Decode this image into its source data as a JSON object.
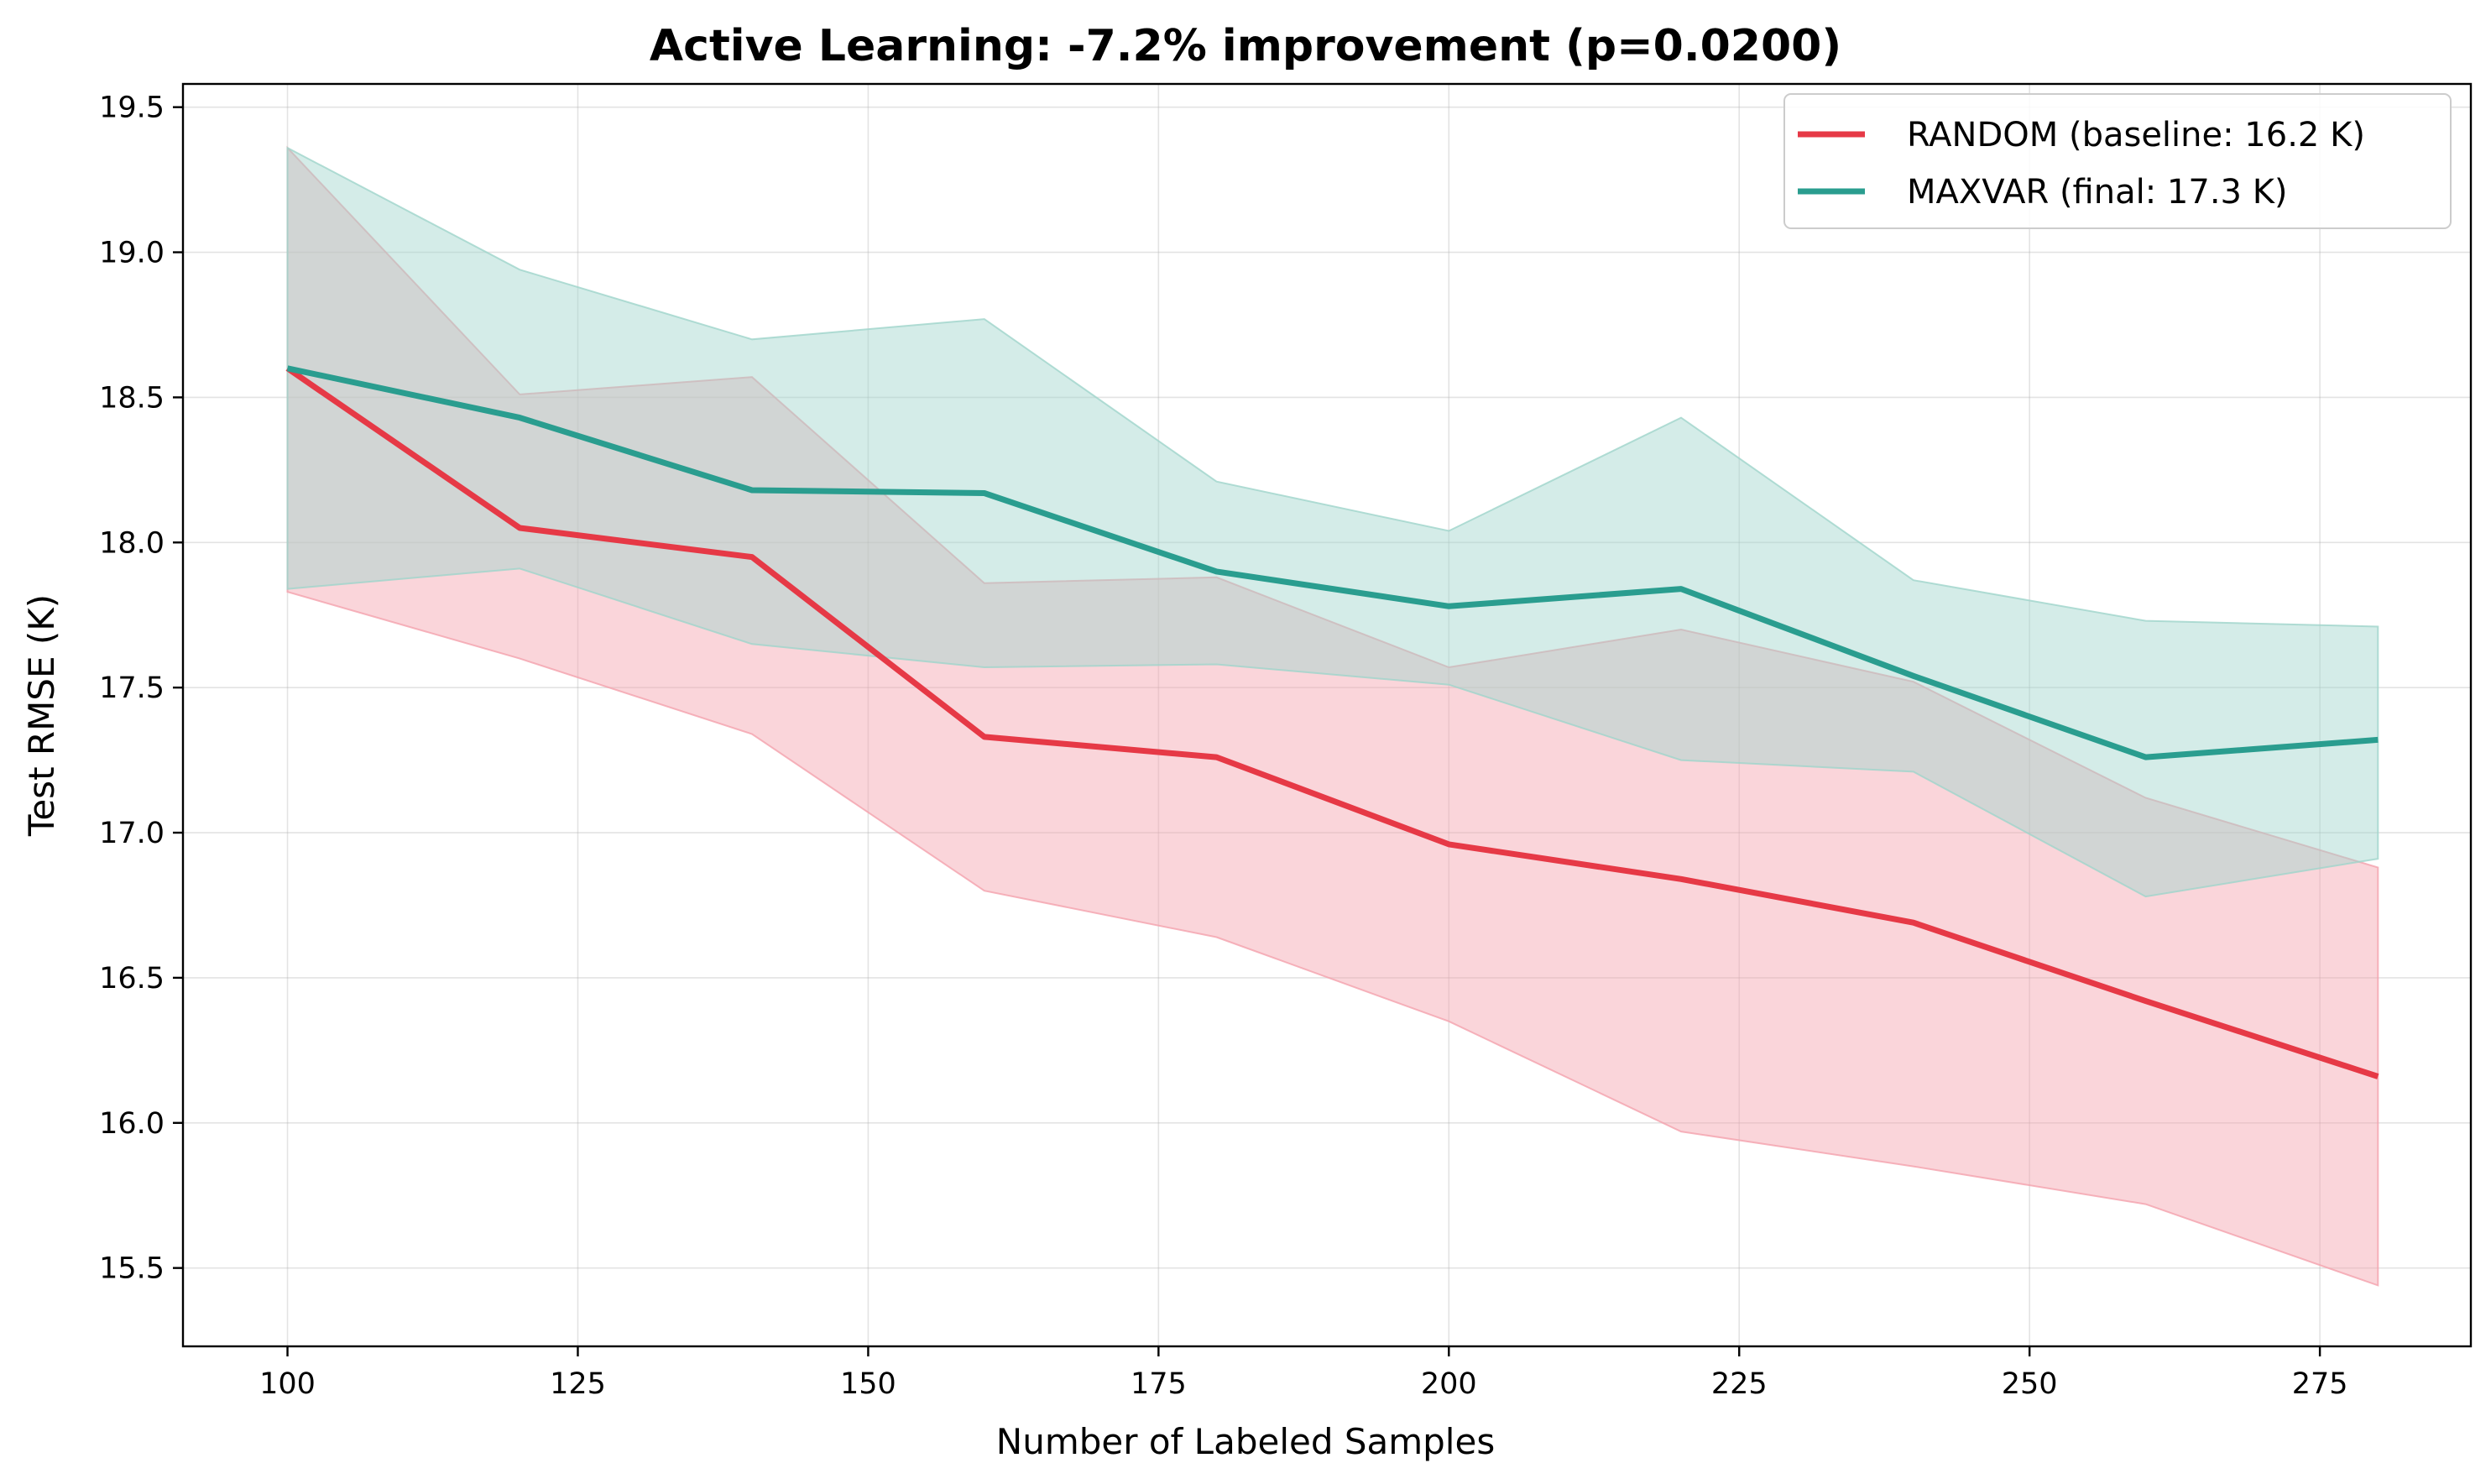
{
  "chart_data": {
    "type": "line",
    "title": "Active Learning: -7.2% improvement (p=0.0200)",
    "xlabel": "Number of Labeled Samples",
    "ylabel": "Test RMSE (K)",
    "xlim": [
      91,
      288
    ],
    "ylim": [
      15.23,
      19.58
    ],
    "xticks": [
      100,
      125,
      150,
      175,
      200,
      225,
      250,
      275
    ],
    "yticks": [
      15.5,
      16.0,
      16.5,
      17.0,
      17.5,
      18.0,
      18.5,
      19.0,
      19.5
    ],
    "grid": true,
    "legend_position": "top-right",
    "x": [
      100,
      120,
      140,
      160,
      180,
      200,
      220,
      240,
      260,
      280
    ],
    "series": [
      {
        "name": "RANDOM (baseline: 16.2 K)",
        "color": "#e63946",
        "values": [
          18.6,
          18.05,
          17.95,
          17.33,
          17.26,
          16.96,
          16.84,
          16.69,
          16.42,
          16.16
        ],
        "lower": [
          17.83,
          17.6,
          17.34,
          16.8,
          16.64,
          16.35,
          15.97,
          15.85,
          15.72,
          15.44
        ],
        "upper": [
          19.36,
          18.51,
          18.57,
          17.86,
          17.88,
          17.57,
          17.7,
          17.52,
          17.12,
          16.88
        ]
      },
      {
        "name": "MAXVAR (final: 17.3 K)",
        "color": "#2a9d8f",
        "values": [
          18.6,
          18.43,
          18.18,
          18.17,
          17.9,
          17.78,
          17.84,
          17.54,
          17.26,
          17.32
        ],
        "lower": [
          17.84,
          17.91,
          17.65,
          17.57,
          17.58,
          17.51,
          17.25,
          17.21,
          16.78,
          16.91
        ],
        "upper": [
          19.36,
          18.94,
          18.7,
          18.77,
          18.21,
          18.04,
          18.43,
          17.87,
          17.73,
          17.71
        ]
      }
    ]
  }
}
